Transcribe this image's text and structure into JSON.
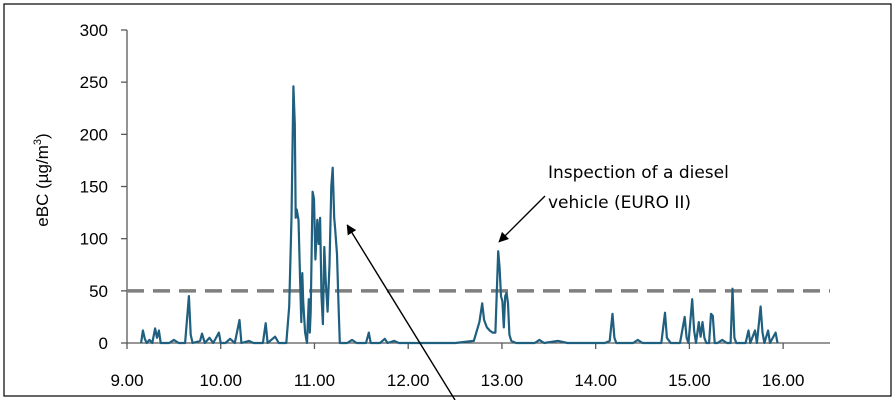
{
  "chart_data": {
    "type": "line",
    "title": "",
    "xlabel": "",
    "ylabel": "eBC (µg/m³)",
    "ylabel_text": "eBC (µg/m",
    "ylabel_sup": "3",
    "ylabel_close": ")",
    "xlim": [
      9.0,
      16.5
    ],
    "ylim": [
      0,
      300
    ],
    "x_ticks": [
      9,
      10,
      11,
      12,
      13,
      14,
      15,
      16
    ],
    "x_tick_labels": [
      "9.00",
      "10.00",
      "11.00",
      "12.00",
      "13.00",
      "14.00",
      "15.00",
      "16.00"
    ],
    "y_ticks": [
      0,
      50,
      100,
      150,
      200,
      250,
      300
    ],
    "y_tick_labels": [
      "0",
      "50",
      "100",
      "150",
      "200",
      "250",
      "300"
    ],
    "grid": false,
    "legend": "none",
    "threshold": {
      "y": 50,
      "style": "dashed",
      "color": "#7f7f7f"
    },
    "series": [
      {
        "color": "#1f5f7f",
        "points": [
          [
            9.15,
            0
          ],
          [
            9.17,
            12
          ],
          [
            9.19,
            4
          ],
          [
            9.21,
            0
          ],
          [
            9.24,
            3
          ],
          [
            9.27,
            0
          ],
          [
            9.3,
            14
          ],
          [
            9.32,
            5
          ],
          [
            9.34,
            12
          ],
          [
            9.36,
            0
          ],
          [
            9.45,
            0
          ],
          [
            9.5,
            3
          ],
          [
            9.55,
            0
          ],
          [
            9.62,
            0
          ],
          [
            9.66,
            45
          ],
          [
            9.68,
            8
          ],
          [
            9.7,
            0
          ],
          [
            9.78,
            2
          ],
          [
            9.8,
            9
          ],
          [
            9.83,
            0
          ],
          [
            9.88,
            5
          ],
          [
            9.92,
            0
          ],
          [
            9.98,
            10
          ],
          [
            10.0,
            0
          ],
          [
            10.05,
            0
          ],
          [
            10.1,
            4
          ],
          [
            10.15,
            0
          ],
          [
            10.2,
            22
          ],
          [
            10.22,
            0
          ],
          [
            10.3,
            2
          ],
          [
            10.35,
            0
          ],
          [
            10.45,
            0
          ],
          [
            10.48,
            19
          ],
          [
            10.5,
            0
          ],
          [
            10.58,
            6
          ],
          [
            10.62,
            0
          ],
          [
            10.7,
            0
          ],
          [
            10.73,
            35
          ],
          [
            10.755,
            120
          ],
          [
            10.775,
            246
          ],
          [
            10.79,
            210
          ],
          [
            10.8,
            120
          ],
          [
            10.81,
            128
          ],
          [
            10.83,
            118
          ],
          [
            10.85,
            50
          ],
          [
            10.86,
            20
          ],
          [
            10.87,
            67
          ],
          [
            10.88,
            40
          ],
          [
            10.9,
            10
          ],
          [
            10.92,
            0
          ],
          [
            10.94,
            42
          ],
          [
            10.95,
            10
          ],
          [
            10.96,
            30
          ],
          [
            10.98,
            145
          ],
          [
            10.995,
            138
          ],
          [
            11.01,
            80
          ],
          [
            11.03,
            118
          ],
          [
            11.045,
            95
          ],
          [
            11.06,
            120
          ],
          [
            11.075,
            45
          ],
          [
            11.09,
            18
          ],
          [
            11.105,
            92
          ],
          [
            11.12,
            60
          ],
          [
            11.14,
            30
          ],
          [
            11.16,
            75
          ],
          [
            11.18,
            150
          ],
          [
            11.195,
            168
          ],
          [
            11.21,
            120
          ],
          [
            11.22,
            110
          ],
          [
            11.24,
            85
          ],
          [
            11.255,
            40
          ],
          [
            11.27,
            0
          ],
          [
            11.35,
            0
          ],
          [
            11.4,
            3
          ],
          [
            11.45,
            0
          ],
          [
            11.55,
            0
          ],
          [
            11.58,
            10
          ],
          [
            11.6,
            0
          ],
          [
            11.7,
            0
          ],
          [
            11.75,
            4
          ],
          [
            11.78,
            0
          ],
          [
            11.85,
            2
          ],
          [
            11.9,
            0
          ],
          [
            12.2,
            0
          ],
          [
            12.5,
            0
          ],
          [
            12.7,
            2
          ],
          [
            12.76,
            20
          ],
          [
            12.79,
            38
          ],
          [
            12.81,
            22
          ],
          [
            12.84,
            15
          ],
          [
            12.87,
            12
          ],
          [
            12.9,
            10
          ],
          [
            12.93,
            10
          ],
          [
            12.96,
            88
          ],
          [
            12.975,
            72
          ],
          [
            12.99,
            45
          ],
          [
            13.005,
            40
          ],
          [
            13.02,
            15
          ],
          [
            13.035,
            45
          ],
          [
            13.05,
            48
          ],
          [
            13.065,
            38
          ],
          [
            13.08,
            8
          ],
          [
            13.1,
            2
          ],
          [
            13.15,
            0
          ],
          [
            13.35,
            0
          ],
          [
            13.4,
            3
          ],
          [
            13.45,
            0
          ],
          [
            13.6,
            2
          ],
          [
            13.7,
            0
          ],
          [
            14.1,
            0
          ],
          [
            14.15,
            2
          ],
          [
            14.18,
            28
          ],
          [
            14.2,
            5
          ],
          [
            14.22,
            0
          ],
          [
            14.4,
            0
          ],
          [
            14.45,
            3
          ],
          [
            14.5,
            0
          ],
          [
            14.7,
            0
          ],
          [
            14.74,
            29
          ],
          [
            14.76,
            5
          ],
          [
            14.8,
            0
          ],
          [
            14.9,
            0
          ],
          [
            14.95,
            25
          ],
          [
            14.97,
            5
          ],
          [
            14.99,
            0
          ],
          [
            15.03,
            42
          ],
          [
            15.05,
            12
          ],
          [
            15.07,
            0
          ],
          [
            15.1,
            20
          ],
          [
            15.12,
            6
          ],
          [
            15.14,
            20
          ],
          [
            15.16,
            5
          ],
          [
            15.18,
            0
          ],
          [
            15.21,
            0
          ],
          [
            15.23,
            28
          ],
          [
            15.25,
            26
          ],
          [
            15.27,
            0
          ],
          [
            15.3,
            0
          ],
          [
            15.35,
            3
          ],
          [
            15.4,
            0
          ],
          [
            15.44,
            0
          ],
          [
            15.46,
            52
          ],
          [
            15.48,
            5
          ],
          [
            15.5,
            0
          ],
          [
            15.55,
            0
          ],
          [
            15.6,
            0
          ],
          [
            15.63,
            12
          ],
          [
            15.65,
            0
          ],
          [
            15.7,
            12
          ],
          [
            15.72,
            0
          ],
          [
            15.76,
            35
          ],
          [
            15.78,
            10
          ],
          [
            15.8,
            0
          ],
          [
            15.84,
            12
          ],
          [
            15.86,
            0
          ],
          [
            15.92,
            10
          ],
          [
            15.94,
            0
          ]
        ]
      }
    ],
    "annotations": [
      {
        "text_lines": [
          "Inspection of a diesel",
          "vehicle (EURO II)"
        ],
        "arrow_to": [
          12.97,
          97
        ]
      },
      {
        "text_lines": [],
        "arrow_to": [
          11.35,
          113
        ]
      }
    ]
  }
}
